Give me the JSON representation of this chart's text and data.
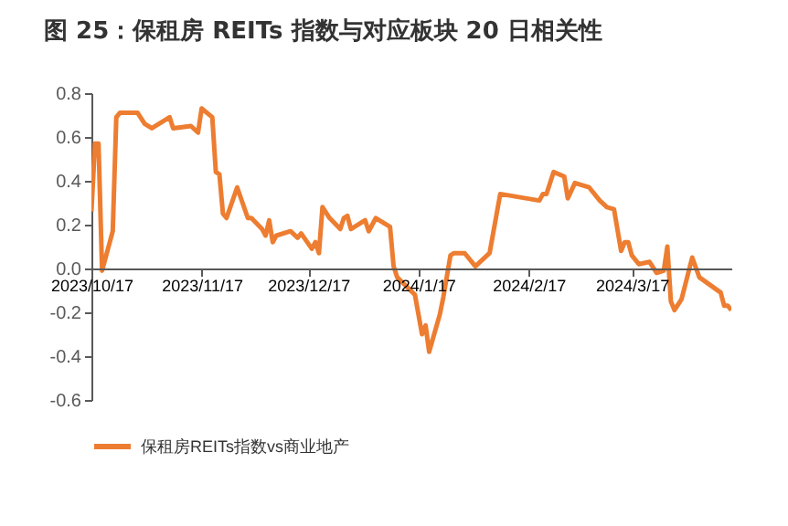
{
  "chart_data": {
    "type": "line",
    "title": "图 25：保租房 REITs 指数与对应板块 20 日相关性",
    "x": [
      "2023-10-17",
      "2023-10-18",
      "2023-10-19",
      "2023-10-20",
      "2023-10-23",
      "2023-10-24",
      "2023-10-25",
      "2023-10-30",
      "2023-11-01",
      "2023-11-03",
      "2023-11-08",
      "2023-11-09",
      "2023-11-14",
      "2023-11-16",
      "2023-11-17",
      "2023-11-20",
      "2023-11-21",
      "2023-11-22",
      "2023-11-23",
      "2023-11-24",
      "2023-11-27",
      "2023-11-30",
      "2023-12-01",
      "2023-12-04",
      "2023-12-05",
      "2023-12-06",
      "2023-12-07",
      "2023-12-08",
      "2023-12-12",
      "2023-12-14",
      "2023-12-15",
      "2023-12-18",
      "2023-12-19",
      "2023-12-20",
      "2023-12-21",
      "2023-12-23",
      "2023-12-26",
      "2023-12-27",
      "2023-12-28",
      "2023-12-29",
      "2024-01-02",
      "2024-01-03",
      "2024-01-05",
      "2024-01-09",
      "2024-01-10",
      "2024-01-11",
      "2024-01-16",
      "2024-01-18",
      "2024-01-19",
      "2024-01-20",
      "2024-01-23",
      "2024-01-24",
      "2024-01-26",
      "2024-01-27",
      "2024-01-30",
      "2024-02-02",
      "2024-02-06",
      "2024-02-09",
      "2024-02-20",
      "2024-02-21",
      "2024-02-22",
      "2024-02-24",
      "2024-02-27",
      "2024-02-28",
      "2024-03-01",
      "2024-03-05",
      "2024-03-08",
      "2024-03-10",
      "2024-03-12",
      "2024-03-14",
      "2024-03-15",
      "2024-03-16",
      "2024-03-17",
      "2024-03-19",
      "2024-03-22",
      "2024-03-24",
      "2024-03-26",
      "2024-03-27",
      "2024-03-28",
      "2024-03-29",
      "2024-03-31",
      "2024-04-03",
      "2024-04-05",
      "2024-04-11",
      "2024-04-12",
      "2024-04-13",
      "2024-04-14"
    ],
    "series": [
      {
        "name": "保租房REITs指数vs商业地产",
        "color": "#ed7d31",
        "values": [
          0.26,
          0.57,
          0.57,
          -0.01,
          0.17,
          0.69,
          0.71,
          0.71,
          0.66,
          0.64,
          0.69,
          0.64,
          0.65,
          0.62,
          0.73,
          0.69,
          0.44,
          0.43,
          0.25,
          0.23,
          0.37,
          0.23,
          0.23,
          0.18,
          0.15,
          0.22,
          0.12,
          0.15,
          0.17,
          0.14,
          0.16,
          0.09,
          0.12,
          0.07,
          0.28,
          0.23,
          0.18,
          0.23,
          0.24,
          0.18,
          0.22,
          0.17,
          0.23,
          0.19,
          0.01,
          -0.04,
          -0.12,
          -0.3,
          -0.26,
          -0.38,
          -0.21,
          -0.13,
          0.06,
          0.07,
          0.07,
          0.01,
          0.07,
          0.34,
          0.31,
          0.34,
          0.34,
          0.44,
          0.42,
          0.32,
          0.39,
          0.37,
          0.31,
          0.28,
          0.27,
          0.08,
          0.12,
          0.12,
          0.06,
          0.02,
          0.03,
          -0.02,
          -0.01,
          0.1,
          -0.15,
          -0.19,
          -0.14,
          0.05,
          -0.04,
          -0.11,
          -0.17,
          -0.17,
          -0.19
        ]
      }
    ],
    "xlim": [
      "2023-10-17",
      "2024-04-14"
    ],
    "xticks": [
      {
        "value": "2023-10-17",
        "label": "2023/10/17"
      },
      {
        "value": "2023-11-17",
        "label": "2023/11/17"
      },
      {
        "value": "2023-12-17",
        "label": "2023/12/17"
      },
      {
        "value": "2024-01-17",
        "label": "2024/1/17"
      },
      {
        "value": "2024-02-17",
        "label": "2024/2/17"
      },
      {
        "value": "2024-03-17",
        "label": "2024/3/17"
      }
    ],
    "ylim": [
      -0.6,
      0.8
    ],
    "yticks": [
      -0.6,
      -0.4,
      -0.2,
      {
        "value": 0,
        "label": "0.0"
      },
      0.2,
      0.4,
      0.6,
      0.8
    ],
    "legend": "bottom",
    "grid": false,
    "line_style": "solid",
    "marker": "none"
  }
}
